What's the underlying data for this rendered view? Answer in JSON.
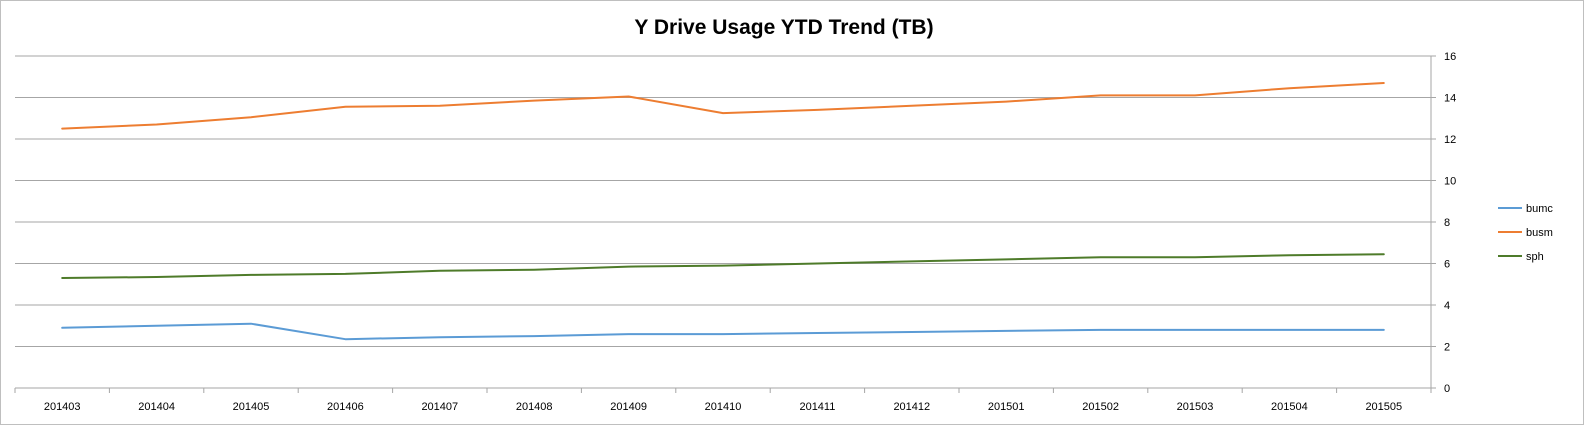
{
  "chart_data": {
    "type": "line",
    "title": "Y Drive Usage YTD Trend (TB)",
    "xlabel": "",
    "ylabel": "",
    "categories": [
      "201403",
      "201404",
      "201405",
      "201406",
      "201407",
      "201408",
      "201409",
      "201410",
      "201411",
      "201412",
      "201501",
      "201502",
      "201503",
      "201504",
      "201505"
    ],
    "ylim": [
      0,
      16
    ],
    "yticks": [
      0,
      2,
      4,
      6,
      8,
      10,
      12,
      14,
      16
    ],
    "y_axis_side": "right",
    "grid": true,
    "legend_position": "right",
    "series": [
      {
        "name": "bumc",
        "color": "#5b9bd5",
        "values": [
          2.9,
          3.0,
          3.1,
          2.35,
          2.45,
          2.5,
          2.6,
          2.6,
          2.65,
          2.7,
          2.75,
          2.8,
          2.8,
          2.8,
          2.8
        ]
      },
      {
        "name": "busm",
        "color": "#ed7d31",
        "values": [
          12.5,
          12.7,
          13.05,
          13.55,
          13.6,
          13.85,
          14.05,
          13.25,
          13.4,
          13.6,
          13.8,
          14.1,
          14.1,
          14.45,
          14.7
        ]
      },
      {
        "name": "sph",
        "color": "#4e7b2a",
        "values": [
          5.3,
          5.35,
          5.45,
          5.5,
          5.65,
          5.7,
          5.85,
          5.9,
          6.0,
          6.1,
          6.2,
          6.3,
          6.3,
          6.4,
          6.45
        ]
      }
    ]
  }
}
